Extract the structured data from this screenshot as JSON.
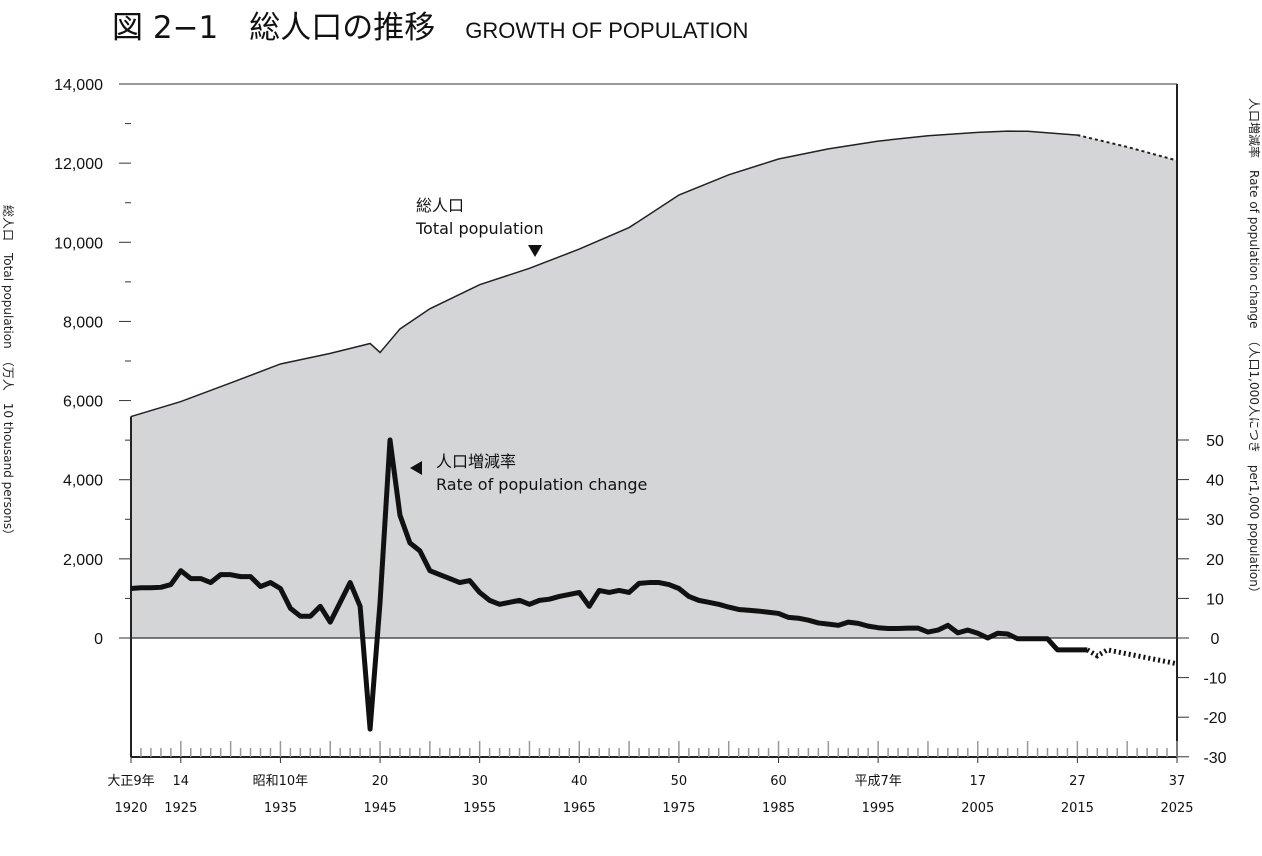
{
  "title": {
    "jp": "図 2−1　総人口の推移",
    "en": "GROWTH OF POPULATION"
  },
  "chart_data": {
    "type": "area+line",
    "title": "図 2−1　総人口の推移 GROWTH OF POPULATION",
    "ylabel_left": "総人口　Total population　（万人　10 thousand persons）",
    "ylabel_right": "人口増減率　Rate of population change　（人口1,000人につき　per1,000 population）",
    "ylim_left": [
      0,
      14000
    ],
    "yticks_left": [
      "0",
      "2,000",
      "4,000",
      "6,000",
      "8,000",
      "10,000",
      "12,000",
      "14,000"
    ],
    "ylim_right": [
      -30,
      50
    ],
    "yticks_right": [
      "-30",
      "-20",
      "-10",
      "0",
      "10",
      "20",
      "30",
      "40",
      "50"
    ],
    "xlim": [
      1920,
      2025
    ],
    "xticks": [
      {
        "year": 1920,
        "era": "大正9年",
        "label": "1920"
      },
      {
        "year": 1925,
        "era": "14",
        "label": "1925"
      },
      {
        "year": 1935,
        "era": "昭和10年",
        "label": "1935"
      },
      {
        "year": 1945,
        "era": "20",
        "label": "1945"
      },
      {
        "year": 1955,
        "era": "30",
        "label": "1955"
      },
      {
        "year": 1965,
        "era": "40",
        "label": "1965"
      },
      {
        "year": 1975,
        "era": "50",
        "label": "1975"
      },
      {
        "year": 1985,
        "era": "60",
        "label": "1985"
      },
      {
        "year": 1995,
        "era": "平成7年",
        "label": "1995"
      },
      {
        "year": 2005,
        "era": "17",
        "label": "2005"
      },
      {
        "year": 2015,
        "era": "27",
        "label": "2015"
      },
      {
        "year": 2025,
        "era": "37",
        "label": "2025"
      }
    ],
    "series": [
      {
        "name": "総人口 Total population",
        "axis": "left",
        "style": "area",
        "color": "#d4d5d7",
        "x": [
          1920,
          1925,
          1930,
          1935,
          1940,
          1943,
          1944,
          1945,
          1947,
          1950,
          1955,
          1960,
          1965,
          1970,
          1972,
          1975,
          1980,
          1985,
          1990,
          1995,
          2000,
          2005,
          2008,
          2010,
          2015
        ],
        "y": [
          5596,
          5974,
          6445,
          6925,
          7193,
          7380,
          7443,
          7215,
          7810,
          8320,
          8928,
          9342,
          9828,
          10372,
          10700,
          11194,
          11706,
          12105,
          12361,
          12557,
          12693,
          12777,
          12808,
          12806,
          12709
        ],
        "projection": {
          "x": [
            2015,
            2020,
            2025
          ],
          "y": [
            12709,
            12410,
            12066
          ]
        }
      },
      {
        "name": "人口増減率 Rate of population change",
        "axis": "right",
        "style": "line",
        "color": "#111111",
        "x": [
          1920,
          1921,
          1922,
          1923,
          1924,
          1925,
          1926,
          1927,
          1928,
          1929,
          1930,
          1931,
          1932,
          1933,
          1934,
          1935,
          1936,
          1937,
          1938,
          1939,
          1940,
          1941,
          1942,
          1943,
          1944,
          1945,
          1946,
          1947,
          1948,
          1949,
          1950,
          1951,
          1952,
          1953,
          1954,
          1955,
          1956,
          1957,
          1958,
          1959,
          1960,
          1961,
          1962,
          1963,
          1964,
          1965,
          1966,
          1967,
          1968,
          1969,
          1970,
          1971,
          1972,
          1973,
          1974,
          1975,
          1976,
          1977,
          1978,
          1979,
          1980,
          1981,
          1982,
          1983,
          1984,
          1985,
          1986,
          1987,
          1988,
          1989,
          1990,
          1991,
          1992,
          1993,
          1994,
          1995,
          1996,
          1997,
          1998,
          1999,
          2000,
          2001,
          2002,
          2003,
          2004,
          2005,
          2006,
          2007,
          2008,
          2009,
          2010,
          2011,
          2012,
          2013,
          2014,
          2015,
          2016
        ],
        "y": [
          12.5,
          12.7,
          12.7,
          12.8,
          13.5,
          17,
          15,
          15,
          14,
          16,
          16,
          15.5,
          15.5,
          13,
          14,
          12.5,
          7.5,
          5.5,
          5.5,
          8,
          4,
          9,
          14,
          8,
          -23,
          9,
          50,
          31,
          24,
          22,
          17,
          16,
          15,
          14,
          14.5,
          11.5,
          9.5,
          8.5,
          9,
          9.5,
          8.5,
          9.5,
          9.8,
          10.5,
          11,
          11.5,
          8,
          12,
          11.5,
          12,
          11.5,
          13.8,
          14,
          14,
          13.5,
          12.5,
          10.5,
          9.5,
          9,
          8.5,
          7.8,
          7.2,
          7,
          6.8,
          6.5,
          6.2,
          5.2,
          5,
          4.5,
          3.8,
          3.5,
          3.2,
          4,
          3.7,
          3,
          2.6,
          2.4,
          2.4,
          2.5,
          2.5,
          1.5,
          2,
          3.2,
          1.3,
          2,
          1.2,
          0,
          1.2,
          1,
          -0.2,
          -0.2,
          -0.2,
          -0.2,
          -3,
          -3,
          -3,
          -3
        ],
        "projection": {
          "x": [
            2016,
            2017,
            2018,
            2019,
            2020,
            2021,
            2022,
            2023,
            2024,
            2025
          ],
          "y": [
            -3,
            -4.5,
            -3,
            -3.5,
            -4,
            -4.5,
            -5,
            -5.5,
            -6,
            -6.5
          ]
        }
      }
    ],
    "annotations": [
      {
        "jp": "総人口",
        "en": "Total population",
        "marker": "down-triangle",
        "x": 1961
      },
      {
        "jp": "人口増減率",
        "en": "Rate of population change",
        "marker": "left-triangle",
        "x": 1949
      }
    ],
    "grid": false,
    "legend": "none"
  }
}
